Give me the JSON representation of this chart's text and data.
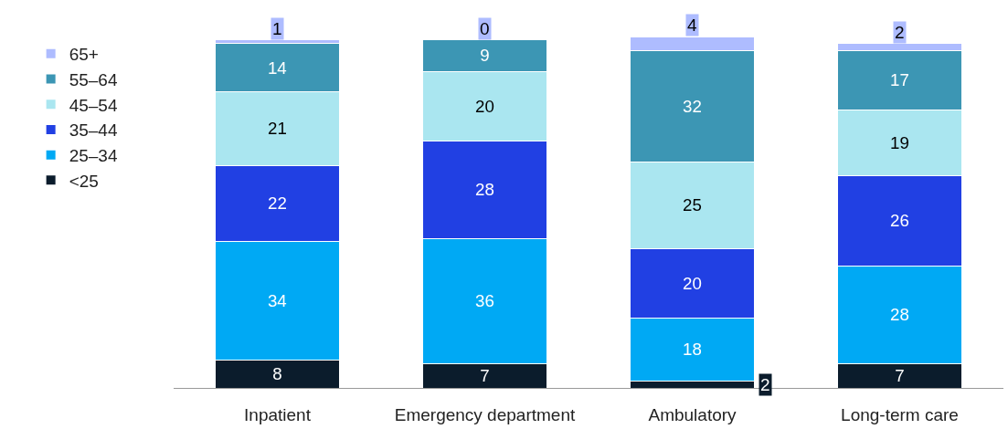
{
  "chart_data": {
    "type": "bar",
    "stacked": true,
    "data_labels": true,
    "legend": "top left",
    "tick_labels": "x",
    "categories": [
      "Inpatient",
      "Emergency department",
      "Ambulatory",
      "Long-term care"
    ],
    "series": [
      {
        "name": "<25",
        "color": "#0b1c2c",
        "values": [
          8,
          7,
          2,
          7
        ]
      },
      {
        "name": "25–34",
        "color": "#00a9f4",
        "values": [
          34,
          36,
          18,
          28
        ]
      },
      {
        "name": "35–44",
        "color": "#2140e3",
        "values": [
          22,
          28,
          20,
          26
        ]
      },
      {
        "name": "45–54",
        "color": "#aae6f0",
        "values": [
          21,
          20,
          25,
          19
        ]
      },
      {
        "name": "55–64",
        "color": "#3c96b4",
        "values": [
          14,
          9,
          32,
          17
        ]
      },
      {
        "name": "65+",
        "color": "#aebcff",
        "values": [
          1,
          0,
          4,
          2
        ]
      }
    ]
  }
}
